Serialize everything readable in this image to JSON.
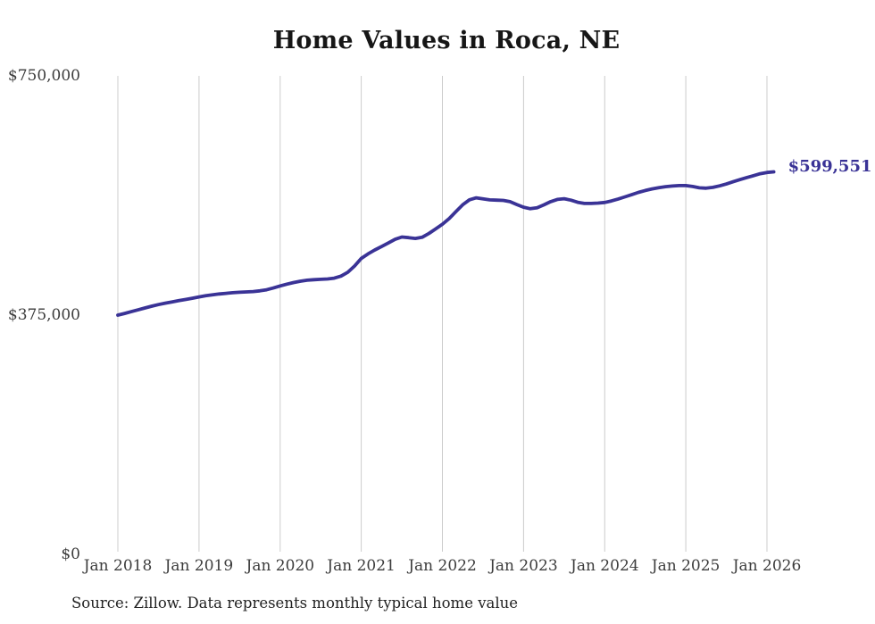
{
  "chart_data": {
    "type": "line",
    "title": "Home Values in Roca, NE",
    "series_name": "Monthly typical home value",
    "unit": "USD",
    "source": "Source: Zillow. Data represents monthly typical home value",
    "end_label": "$599,551",
    "last_value": 599551,
    "ylim": [
      0,
      750000
    ],
    "grid": "vertical-only",
    "legend": "none",
    "line_color": "#3a3396",
    "grid_color": "#cccccc",
    "tick_label_color": "#3c3c3c",
    "y_ticks": [
      {
        "label": "$0",
        "value": 0
      },
      {
        "label": "$375,000",
        "value": 375000
      },
      {
        "label": "$750,000",
        "value": 750000
      }
    ],
    "x_tick_labels": [
      "Jan 2018",
      "Jan 2019",
      "Jan 2020",
      "Jan 2021",
      "Jan 2022",
      "Jan 2023",
      "Jan 2024",
      "Jan 2025",
      "Jan 2026"
    ],
    "x_tick_month_index": [
      0,
      12,
      24,
      36,
      48,
      60,
      72,
      84,
      96
    ],
    "x": [
      "2018-01",
      "2018-02",
      "2018-03",
      "2018-04",
      "2018-05",
      "2018-06",
      "2018-07",
      "2018-08",
      "2018-09",
      "2018-10",
      "2018-11",
      "2018-12",
      "2019-01",
      "2019-02",
      "2019-03",
      "2019-04",
      "2019-05",
      "2019-06",
      "2019-07",
      "2019-08",
      "2019-09",
      "2019-10",
      "2019-11",
      "2019-12",
      "2020-01",
      "2020-02",
      "2020-03",
      "2020-04",
      "2020-05",
      "2020-06",
      "2020-07",
      "2020-08",
      "2020-09",
      "2020-10",
      "2020-11",
      "2020-12",
      "2021-01",
      "2021-02",
      "2021-03",
      "2021-04",
      "2021-05",
      "2021-06",
      "2021-07",
      "2021-08",
      "2021-09",
      "2021-10",
      "2021-11",
      "2021-12",
      "2022-01",
      "2022-02",
      "2022-03",
      "2022-04",
      "2022-05",
      "2022-06",
      "2022-07",
      "2022-08",
      "2022-09",
      "2022-10",
      "2022-11",
      "2022-12",
      "2023-01",
      "2023-02",
      "2023-03",
      "2023-04",
      "2023-05",
      "2023-06",
      "2023-07",
      "2023-08",
      "2023-09",
      "2023-10",
      "2023-11",
      "2023-12",
      "2024-01",
      "2024-02",
      "2024-03",
      "2024-04",
      "2024-05",
      "2024-06",
      "2024-07",
      "2024-08",
      "2024-09",
      "2024-10",
      "2024-11",
      "2024-12",
      "2025-01",
      "2025-02",
      "2025-03",
      "2025-04",
      "2025-05",
      "2025-06",
      "2025-07",
      "2025-08",
      "2025-09",
      "2025-10",
      "2025-11",
      "2025-12",
      "2026-01",
      "2026-02"
    ],
    "values": [
      375000,
      377600,
      380400,
      383300,
      386200,
      389000,
      391500,
      393700,
      395700,
      397600,
      399500,
      401500,
      403600,
      405300,
      406800,
      408100,
      409200,
      410100,
      410800,
      411400,
      412000,
      413000,
      414800,
      417500,
      420700,
      423600,
      426100,
      428200,
      429700,
      430600,
      431100,
      431600,
      432900,
      436200,
      442200,
      452000,
      463800,
      471000,
      477200,
      482400,
      488000,
      493800,
      497400,
      496400,
      495200,
      497000,
      503000,
      510200,
      517400,
      526400,
      537200,
      548000,
      555800,
      558800,
      557200,
      555600,
      555200,
      554800,
      552800,
      548400,
      544200,
      541800,
      543400,
      547800,
      552800,
      556400,
      557400,
      555200,
      551800,
      550000,
      550000,
      550600,
      551600,
      554000,
      557000,
      560400,
      563800,
      567400,
      570400,
      572800,
      574800,
      576400,
      577400,
      578000,
      578000,
      576600,
      574600,
      574000,
      575200,
      577600,
      580600,
      584000,
      587400,
      590600,
      593600,
      596600,
      598600,
      599551
    ]
  }
}
